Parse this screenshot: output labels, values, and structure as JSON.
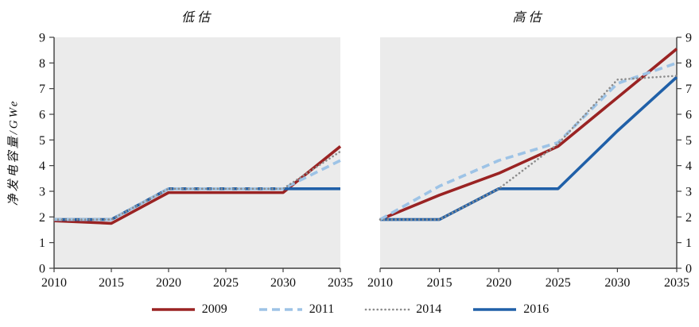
{
  "y_axis_label": "净发电容量/GWe",
  "legend": {
    "items": [
      {
        "label": "2009",
        "style": "solid",
        "color": "#9a2323"
      },
      {
        "label": "2011",
        "style": "dashed",
        "color": "#9dc3e6"
      },
      {
        "label": "2014",
        "style": "dotted",
        "color": "#8c8c8c"
      },
      {
        "label": "2016",
        "style": "solid",
        "color": "#2060a8"
      }
    ]
  },
  "chart_data": [
    {
      "type": "line",
      "title": "低估",
      "x": [
        2010,
        2015,
        2020,
        2025,
        2030,
        2035
      ],
      "xlabel": "",
      "ylabel": "净发电容量/GWe",
      "ylim": [
        0,
        9
      ],
      "yticks": [
        0,
        1,
        2,
        3,
        4,
        5,
        6,
        7,
        8,
        9
      ],
      "y_axis_side": "left",
      "grid": false,
      "plot_bg": "#ebebeb",
      "series": [
        {
          "name": "2009",
          "style": "solid",
          "color": "#9a2323",
          "values": [
            1.85,
            1.75,
            2.95,
            2.95,
            2.95,
            4.75
          ]
        },
        {
          "name": "2011",
          "style": "dashed",
          "color": "#9dc3e6",
          "values": [
            1.9,
            1.9,
            3.1,
            3.1,
            3.1,
            4.2
          ]
        },
        {
          "name": "2014",
          "style": "dotted",
          "color": "#8c8c8c",
          "values": [
            1.9,
            1.9,
            3.1,
            3.1,
            3.1,
            4.55
          ]
        },
        {
          "name": "2016",
          "style": "solid",
          "color": "#2060a8",
          "values": [
            1.9,
            1.9,
            3.1,
            3.1,
            3.1,
            3.1
          ]
        }
      ]
    },
    {
      "type": "line",
      "title": "高估",
      "x": [
        2010,
        2015,
        2020,
        2025,
        2030,
        2035
      ],
      "xlabel": "",
      "ylabel": "净发电容量/GWe",
      "ylim": [
        0,
        9
      ],
      "yticks": [
        0,
        1,
        2,
        3,
        4,
        5,
        6,
        7,
        8,
        9
      ],
      "y_axis_side": "right",
      "grid": false,
      "plot_bg": "#ebebeb",
      "series": [
        {
          "name": "2009",
          "style": "solid",
          "color": "#9a2323",
          "values": [
            1.9,
            2.85,
            3.7,
            4.75,
            6.65,
            8.55
          ]
        },
        {
          "name": "2011",
          "style": "dashed",
          "color": "#9dc3e6",
          "values": [
            1.9,
            3.2,
            4.2,
            4.9,
            7.2,
            8.0
          ]
        },
        {
          "name": "2014",
          "style": "dotted",
          "color": "#8c8c8c",
          "values": [
            1.9,
            1.9,
            3.1,
            4.85,
            7.35,
            7.5
          ]
        },
        {
          "name": "2016",
          "style": "solid",
          "color": "#2060a8",
          "values": [
            1.9,
            1.9,
            3.1,
            3.1,
            5.35,
            7.45
          ]
        }
      ]
    }
  ]
}
